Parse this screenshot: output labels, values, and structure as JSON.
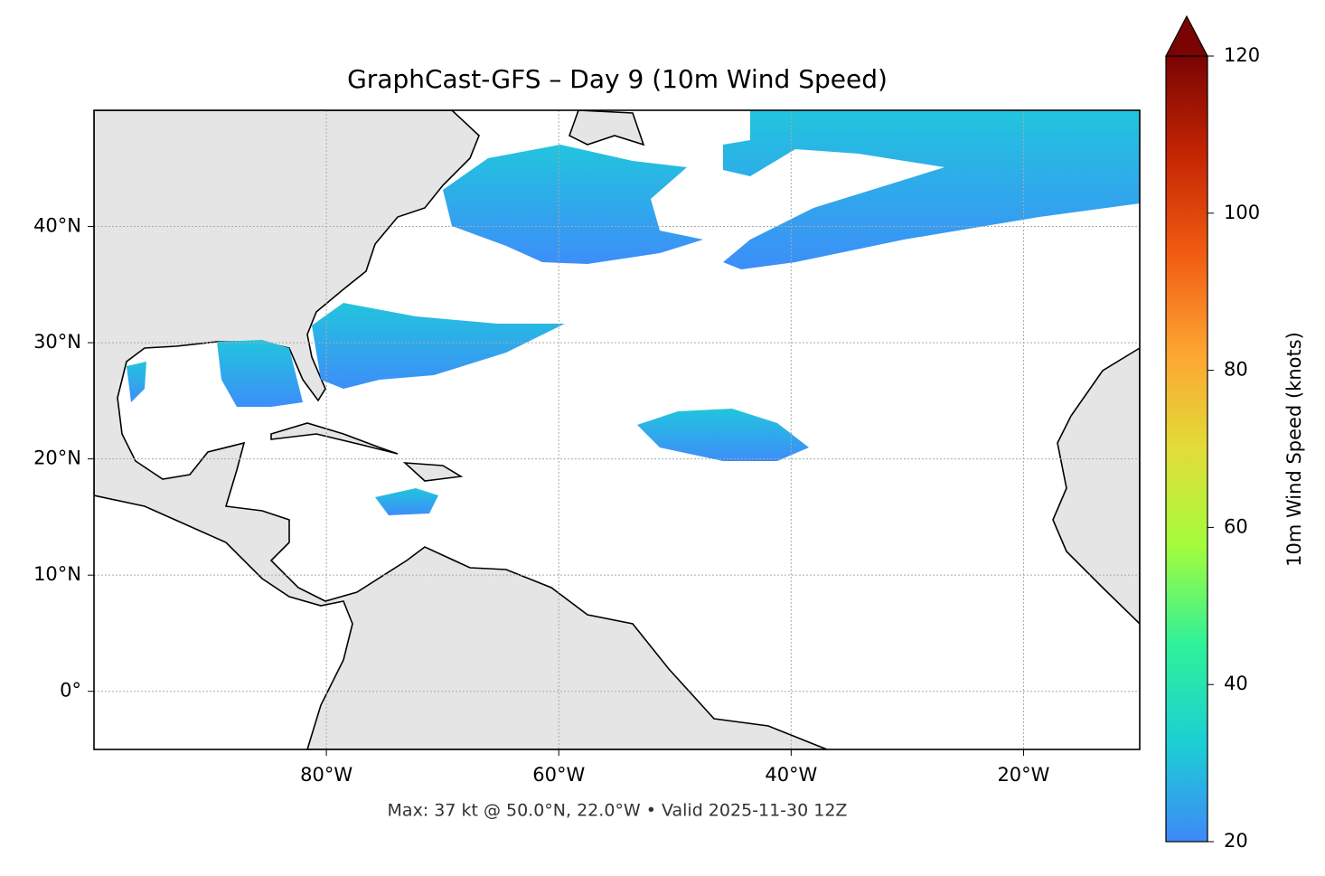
{
  "chart_data": {
    "type": "map",
    "title": "GraphCast-GFS – Day 9 (10m Wind Speed)",
    "annotation": "Max: 37 kt @ 50.0°N, 22.0°W • Valid 2025-11-30 12Z",
    "xlim": [
      -100,
      -10
    ],
    "ylim": [
      -5,
      50
    ],
    "xticks": [
      {
        "value": -80,
        "label": "80°W"
      },
      {
        "value": -60,
        "label": "60°W"
      },
      {
        "value": -40,
        "label": "40°W"
      },
      {
        "value": -20,
        "label": "20°W"
      }
    ],
    "yticks": [
      {
        "value": 0,
        "label": "0°"
      },
      {
        "value": 10,
        "label": "10°N"
      },
      {
        "value": 20,
        "label": "20°N"
      },
      {
        "value": 30,
        "label": "30°N"
      },
      {
        "value": 40,
        "label": "40°N"
      }
    ],
    "grid": true,
    "colorbar": {
      "label": "10m Wind Speed (knots)",
      "lim": [
        20,
        120
      ],
      "ticks": [
        20,
        40,
        60,
        80,
        100,
        120
      ],
      "extend": "max",
      "colors": [
        "#3f88f8",
        "#1bcfd4",
        "#2ff19a",
        "#a2fc3c",
        "#e2dc38",
        "#fea431",
        "#f05b12",
        "#c42503",
        "#7a0403"
      ]
    }
  }
}
